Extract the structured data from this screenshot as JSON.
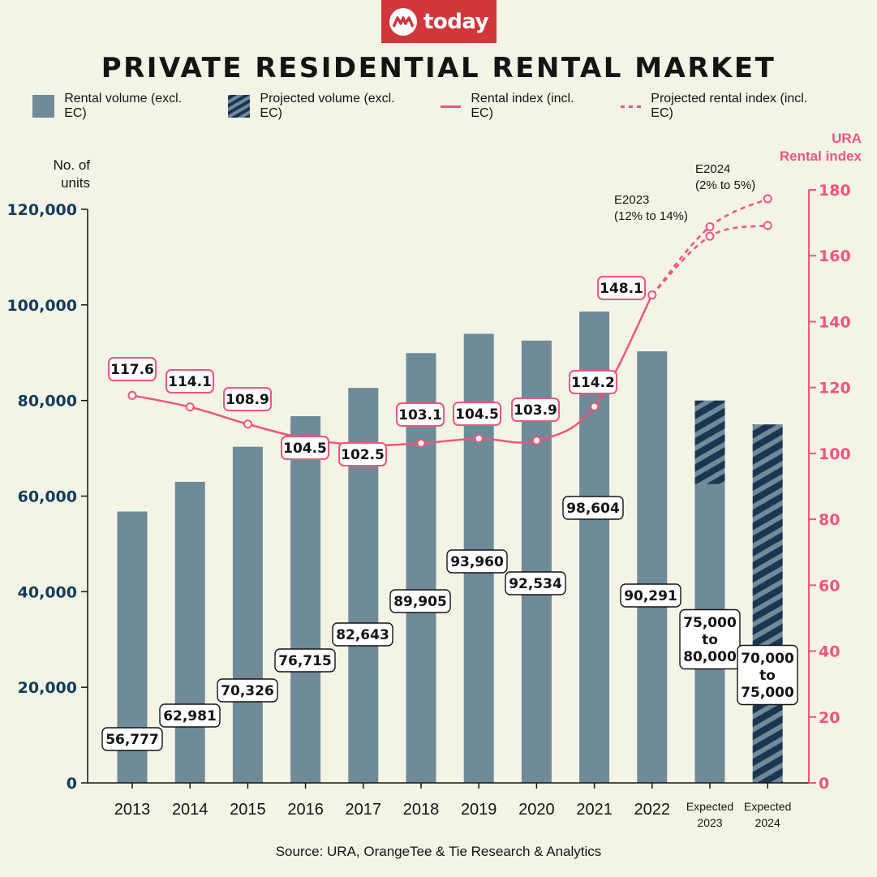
{
  "brand": {
    "name": "today",
    "icon": "mediacorp-logo-icon",
    "color": "#d0373b"
  },
  "title": "PRIVATE RESIDENTIAL RENTAL MARKET",
  "legend": [
    {
      "label": "Rental volume (excl. EC)",
      "icon": "solid-bar-swatch"
    },
    {
      "label": "Projected volume (excl. EC)",
      "icon": "hatched-bar-swatch"
    },
    {
      "label": "Rental index (incl. EC)",
      "icon": "solid-line-swatch"
    },
    {
      "label": "Projected rental index (incl. EC)",
      "icon": "dashed-line-swatch"
    }
  ],
  "source": "Source: URA, OrangeTee & Tie Research & Analytics",
  "colors": {
    "bar": "#6f8a98",
    "hatch_dark": "#1c3550",
    "index_line": "#f0567a",
    "left_axis_text": "#123c5a",
    "background": "#f4f4e6"
  },
  "chart_data": {
    "type": "bar",
    "title": "PRIVATE RESIDENTIAL RENTAL MARKET",
    "categories": [
      "2013",
      "2014",
      "2015",
      "2016",
      "2017",
      "2018",
      "2019",
      "2020",
      "2021",
      "2022",
      "Expected 2023",
      "Expected 2024"
    ],
    "category_labels": [
      [
        "2013"
      ],
      [
        "2014"
      ],
      [
        "2015"
      ],
      [
        "2016"
      ],
      [
        "2017"
      ],
      [
        "2018"
      ],
      [
        "2019"
      ],
      [
        "2020"
      ],
      [
        "2021"
      ],
      [
        "2022"
      ],
      [
        "Expected",
        "2023"
      ],
      [
        "Expected",
        "2024"
      ]
    ],
    "ylabel_left": [
      "No. of",
      "units"
    ],
    "ylabel_right": [
      "URA",
      "Rental index"
    ],
    "ylim_left": [
      0,
      120000
    ],
    "yticks_left": [
      0,
      20000,
      40000,
      60000,
      80000,
      100000,
      120000
    ],
    "ytick_labels_left": [
      "0",
      "20,000",
      "40,000",
      "60,000",
      "80,000",
      "100,000",
      "120,000"
    ],
    "ylim_right": [
      0,
      180
    ],
    "yticks_right": [
      0,
      20,
      40,
      60,
      80,
      100,
      120,
      140,
      160,
      180
    ],
    "grid": false,
    "legend_position": "top",
    "series": [
      {
        "name": "Rental volume (excl. EC)",
        "kind": "bar",
        "values": [
          56777,
          62981,
          70326,
          76715,
          82643,
          89905,
          93960,
          92534,
          98604,
          90291,
          62500,
          null
        ],
        "labels": [
          [
            "56,777"
          ],
          [
            "62,981"
          ],
          [
            "70,326"
          ],
          [
            "76,715"
          ],
          [
            "82,643"
          ],
          [
            "89,905"
          ],
          [
            "93,960"
          ],
          [
            "92,534"
          ],
          [
            "98,604"
          ],
          [
            "90,291"
          ],
          [
            "75,000",
            "to",
            "80,000"
          ],
          [
            "70,000",
            "to",
            "75,000"
          ]
        ]
      },
      {
        "name": "Projected volume (excl. EC)",
        "kind": "bar-hatched",
        "ranges": [
          null,
          null,
          null,
          null,
          null,
          null,
          null,
          null,
          null,
          null,
          [
            62500,
            80000
          ],
          [
            0,
            75000
          ]
        ]
      },
      {
        "name": "Rental index (incl. EC)",
        "kind": "line",
        "axis": "right",
        "values": [
          117.6,
          114.1,
          108.9,
          104.5,
          102.5,
          103.1,
          104.5,
          103.9,
          114.2,
          148.1,
          null,
          null
        ],
        "labels": [
          "117.6",
          "114.1",
          "108.9",
          "104.5",
          "102.5",
          "103.1",
          "104.5",
          "103.9",
          "114.2",
          "148.1",
          null,
          null
        ]
      },
      {
        "name": "Projected rental index (incl. EC) - high",
        "kind": "line-dashed",
        "axis": "right",
        "values": [
          null,
          null,
          null,
          null,
          null,
          null,
          null,
          null,
          null,
          148.1,
          168.8,
          177.3
        ]
      },
      {
        "name": "Projected rental index (incl. EC) - low",
        "kind": "line-dashed",
        "axis": "right",
        "values": [
          null,
          null,
          null,
          null,
          null,
          null,
          null,
          null,
          null,
          148.1,
          165.9,
          169.2
        ]
      }
    ],
    "annotations": [
      {
        "text": [
          "E2023",
          "(12% to 14%)"
        ],
        "category": "Expected 2023"
      },
      {
        "text": [
          "E2024",
          "(2% to 5%)"
        ],
        "category": "Expected 2024"
      }
    ]
  }
}
